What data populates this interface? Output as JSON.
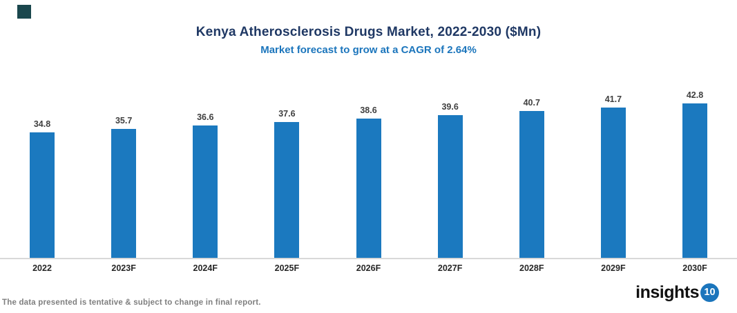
{
  "chart_data": {
    "type": "bar",
    "title": "Kenya Atherosclerosis Drugs Market, 2022-2030 ($Mn)",
    "subtitle": "Market forecast to grow at a CAGR of 2.64%",
    "categories": [
      "2022",
      "2023F",
      "2024F",
      "2025F",
      "2026F",
      "2027F",
      "2028F",
      "2029F",
      "2030F"
    ],
    "values": [
      34.8,
      35.7,
      36.6,
      37.6,
      38.6,
      39.6,
      40.7,
      41.7,
      42.8
    ],
    "value_labels_shown": true,
    "xlabel": "",
    "ylabel": "",
    "ylim": [
      0,
      45
    ],
    "grid": false,
    "legend": false,
    "bar_color": "#1b79bf",
    "title_color": "#1f3864",
    "subtitle_color": "#1b75bc",
    "value_label_color": "#3f3f3f",
    "category_label_color": "#262626",
    "axis_line_color": "#d8d8d8"
  },
  "corner_square": {
    "color": "#1a474d"
  },
  "footer": {
    "disclaimer": "The data presented is tentative & subject to change in final report.",
    "disclaimer_color": "#7f7f7f",
    "logo": {
      "text": "insights",
      "badge": "10",
      "badge_color": "#1b75bc",
      "text_color": "#111111"
    }
  }
}
